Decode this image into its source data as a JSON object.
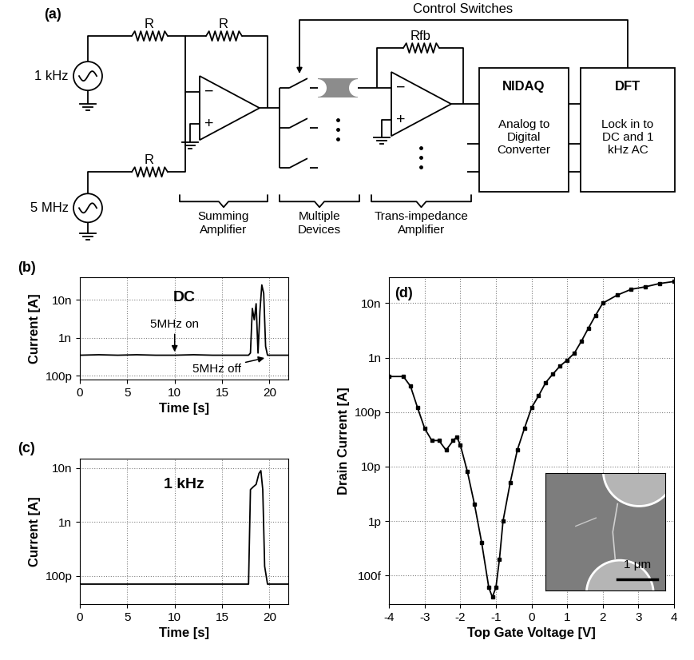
{
  "diagram": {
    "label": "(a)",
    "feedback_label": "Control Switches",
    "sources": [
      {
        "label": "1 kHz"
      },
      {
        "label": "5 MHz"
      }
    ],
    "resistors": [
      "R",
      "R",
      "R",
      "Rfb"
    ],
    "opamp_signs": [
      "−",
      "+"
    ],
    "blocks": [
      {
        "title": "NIDAQ",
        "text": "Analog to\nDigital\nConverter"
      },
      {
        "title": "DFT",
        "text": "Lock in to\nDC and 1\nkHz AC"
      }
    ],
    "stage_labels": [
      "Summing\nAmplifier",
      "Multiple\nDevices",
      "Trans-impedance\nAmplifier"
    ]
  },
  "chart_data": [
    {
      "type": "line",
      "label": "(b)",
      "title": "DC",
      "x_label": "Time [s]",
      "y_label": "Current [A]",
      "log": "y",
      "grid": true,
      "color": "#000000",
      "line_style": "solid",
      "xlim": [
        0,
        22
      ],
      "xticks": [
        0,
        5,
        10,
        15,
        20
      ],
      "ylim": [
        8e-11,
        4e-08
      ],
      "yticks": [
        {
          "value": 1e-10,
          "label": "100p"
        },
        {
          "value": 1e-09,
          "label": "1n"
        },
        {
          "value": 1e-08,
          "label": "10n"
        }
      ],
      "x": [
        0,
        2,
        4,
        6,
        8,
        10,
        12,
        14,
        16,
        17.8,
        18.0,
        18.2,
        18.4,
        18.6,
        18.8,
        19.0,
        19.2,
        19.4,
        19.6,
        19.8,
        20,
        21,
        22
      ],
      "values": [
        3.5e-10,
        3.6e-10,
        3.5e-10,
        3.6e-10,
        3.5e-10,
        3.5e-10,
        3.6e-10,
        3.5e-10,
        3.5e-10,
        3.5e-10,
        4e-10,
        6e-09,
        3e-09,
        8e-09,
        4e-10,
        5e-09,
        2.5e-08,
        1.5e-08,
        6e-10,
        3.5e-10,
        3.5e-10,
        3.5e-10,
        3.5e-10
      ],
      "annotations": [
        {
          "text": "5MHz on",
          "x": 10,
          "y": 4e-10
        },
        {
          "text": "5MHz off",
          "x": 19.6,
          "y": 3e-10
        }
      ]
    },
    {
      "type": "line",
      "label": "(c)",
      "title": "1 kHz",
      "x_label": "Time [s]",
      "y_label": "Current [A]",
      "log": "y",
      "grid": true,
      "color": "#000000",
      "line_style": "solid",
      "xlim": [
        0,
        22
      ],
      "xticks": [
        0,
        5,
        10,
        15,
        20
      ],
      "ylim": [
        3e-11,
        1.5e-08
      ],
      "yticks": [
        {
          "value": 1e-10,
          "label": "100p"
        },
        {
          "value": 1e-09,
          "label": "1n"
        },
        {
          "value": 1e-08,
          "label": "10n"
        }
      ],
      "x": [
        0,
        2,
        4,
        6,
        8,
        10,
        12,
        14,
        16,
        17.8,
        18.0,
        18.3,
        18.6,
        18.9,
        19.1,
        19.3,
        19.5,
        19.8,
        20,
        22
      ],
      "values": [
        7e-11,
        7e-11,
        7e-11,
        7e-11,
        7e-11,
        7e-11,
        7e-11,
        7e-11,
        7e-11,
        7e-11,
        4e-09,
        4.5e-09,
        5e-09,
        8e-09,
        9e-09,
        4e-09,
        1.5e-10,
        7e-11,
        7e-11,
        7e-11
      ]
    },
    {
      "type": "line",
      "label": "(d)",
      "x_label": "Top Gate Voltage [V]",
      "y_label": "Drain Current [A]",
      "log": "y",
      "grid": true,
      "color": "#000000",
      "marker": "square",
      "line_style": "solid",
      "xlim": [
        -4,
        4
      ],
      "xticks": [
        -4,
        -3,
        -2,
        -1,
        0,
        1,
        2,
        3,
        4
      ],
      "ylim": [
        3e-14,
        3e-08
      ],
      "yticks": [
        {
          "value": 1e-13,
          "label": "100f"
        },
        {
          "value": 1e-12,
          "label": "1p"
        },
        {
          "value": 1e-11,
          "label": "10p"
        },
        {
          "value": 1e-10,
          "label": "100p"
        },
        {
          "value": 1e-09,
          "label": "1n"
        },
        {
          "value": 1e-08,
          "label": "10n"
        }
      ],
      "x": [
        -4.0,
        -3.6,
        -3.4,
        -3.2,
        -3.0,
        -2.8,
        -2.6,
        -2.4,
        -2.2,
        -2.1,
        -2.0,
        -1.8,
        -1.6,
        -1.4,
        -1.2,
        -1.1,
        -1.0,
        -0.9,
        -0.8,
        -0.6,
        -0.4,
        -0.2,
        0.0,
        0.2,
        0.4,
        0.6,
        0.8,
        1.0,
        1.2,
        1.4,
        1.6,
        1.8,
        2.0,
        2.4,
        2.8,
        3.2,
        3.6,
        4.0
      ],
      "values": [
        4.5e-10,
        4.5e-10,
        3e-10,
        1.2e-10,
        5e-11,
        3e-11,
        3e-11,
        2e-11,
        3e-11,
        3.5e-11,
        2.5e-11,
        8e-12,
        2e-12,
        4e-13,
        6e-14,
        4e-14,
        6e-14,
        2e-13,
        1e-12,
        5e-12,
        2e-11,
        5e-11,
        1.2e-10,
        2e-10,
        3.5e-10,
        5e-10,
        7e-10,
        9e-10,
        1.2e-09,
        2e-09,
        3.5e-09,
        6e-09,
        1e-08,
        1.4e-08,
        1.8e-08,
        2e-08,
        2.3e-08,
        2.5e-08
      ],
      "inset": {
        "scale_label": "1 μm"
      }
    }
  ]
}
